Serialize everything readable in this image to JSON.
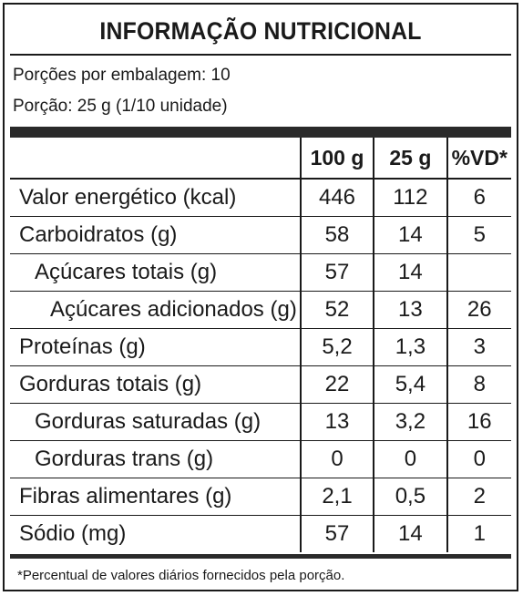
{
  "title": "INFORMAÇÃO NUTRICIONAL",
  "servings_per_package": "Porções por embalagem: 10",
  "serving_size": "Porção: 25 g (1/10 unidade)",
  "headers": {
    "per_100g": "100 g",
    "per_serving": "25 g",
    "dv": "%VD*"
  },
  "rows": [
    {
      "name": "Valor energético (kcal)",
      "per_100g": "446",
      "per_serving": "112",
      "dv": "6"
    },
    {
      "name": "Carboidratos (g)",
      "per_100g": "58",
      "per_serving": "14",
      "dv": "5"
    },
    {
      "name": "Açúcares totais (g)",
      "per_100g": "57",
      "per_serving": "14",
      "dv": ""
    },
    {
      "name": "Açúcares adicionados (g)",
      "per_100g": "52",
      "per_serving": "13",
      "dv": "26"
    },
    {
      "name": "Proteínas (g)",
      "per_100g": "5,2",
      "per_serving": "1,3",
      "dv": "3"
    },
    {
      "name": "Gorduras totais (g)",
      "per_100g": "22",
      "per_serving": "5,4",
      "dv": "8"
    },
    {
      "name": "Gorduras saturadas (g)",
      "per_100g": "13",
      "per_serving": "3,2",
      "dv": "16"
    },
    {
      "name": "Gorduras trans (g)",
      "per_100g": "0",
      "per_serving": "0",
      "dv": "0"
    },
    {
      "name": "Fibras alimentares (g)",
      "per_100g": "2,1",
      "per_serving": "0,5",
      "dv": "2"
    },
    {
      "name": "Sódio (mg)",
      "per_100g": "57",
      "per_serving": "14",
      "dv": "1"
    }
  ],
  "footnote": "*Percentual de valores diários fornecidos pela porção."
}
